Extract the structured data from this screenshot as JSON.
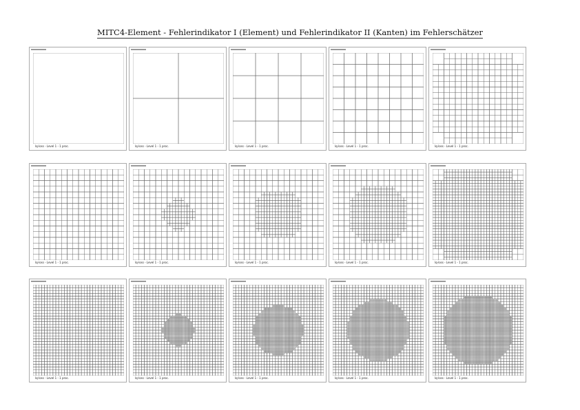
{
  "title": "MITC4-Element - Fehlerindikator I (Element) und Fehlerindikator II (Kanten) im Fehlerschätzer",
  "caption": "lq-loss - Level 1 - 1 proc.",
  "line_color": "#6a6a6a",
  "panels": [
    {
      "base": 1,
      "fine": 1,
      "region": "none"
    },
    {
      "base": 2,
      "fine": 2,
      "region": "none"
    },
    {
      "base": 4,
      "fine": 4,
      "region": "none"
    },
    {
      "base": 8,
      "fine": 8,
      "region": "none"
    },
    {
      "base": 8,
      "fine": 16,
      "region": "not-corners"
    },
    {
      "base": 16,
      "fine": 16,
      "region": "none"
    },
    {
      "base": 16,
      "fine": 32,
      "region": "circle",
      "r": 0.35
    },
    {
      "base": 16,
      "fine": 32,
      "region": "circle",
      "r": 0.55
    },
    {
      "base": 16,
      "fine": 32,
      "region": "circle",
      "r": 0.68
    },
    {
      "base": 16,
      "fine": 32,
      "region": "not-corners"
    },
    {
      "base": 32,
      "fine": 32,
      "region": "none"
    },
    {
      "base": 32,
      "fine": 64,
      "region": "circle",
      "r": 0.35
    },
    {
      "base": 32,
      "fine": 64,
      "region": "circle",
      "r": 0.55
    },
    {
      "base": 32,
      "fine": 64,
      "region": "circle",
      "r": 0.68
    },
    {
      "base": 32,
      "fine": 64,
      "region": "circle",
      "r": 0.78
    }
  ]
}
